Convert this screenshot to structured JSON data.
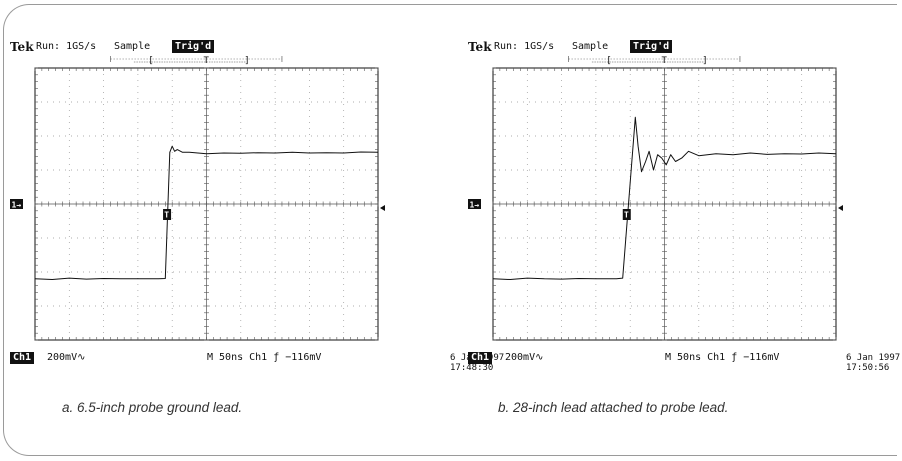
{
  "chart_data": [
    {
      "type": "line",
      "caption": "a. 6.5-inch probe ground lead.",
      "header": {
        "brand": "Tek",
        "run": "Run: 1GS/s",
        "mode": "Sample",
        "trig_status": "Trig'd",
        "trig_marker": "T"
      },
      "footer": {
        "channel": "Ch1",
        "volts_per_div": "200mV",
        "timebase": "M  50ns  Ch1  ƒ −116mV"
      },
      "date": "6 Jan 1997",
      "time": "17:48:30",
      "ground_marker": "1→",
      "trigger_marker": "T",
      "grid": {
        "x_divisions": 10,
        "y_divisions": 8
      },
      "xlim": [
        0,
        10
      ],
      "ylim": [
        -4,
        4
      ],
      "series": [
        {
          "values": [
            [
              0.0,
              -2.2
            ],
            [
              0.5,
              -2.22
            ],
            [
              1.0,
              -2.18
            ],
            [
              1.5,
              -2.21
            ],
            [
              2.0,
              -2.19
            ],
            [
              2.5,
              -2.2
            ],
            [
              3.0,
              -2.2
            ],
            [
              3.6,
              -2.2
            ],
            [
              3.8,
              -2.19
            ],
            [
              3.93,
              1.52
            ],
            [
              4.0,
              1.7
            ],
            [
              4.07,
              1.55
            ],
            [
              4.15,
              1.6
            ],
            [
              4.3,
              1.52
            ],
            [
              4.5,
              1.52
            ],
            [
              5.0,
              1.48
            ],
            [
              5.5,
              1.5
            ],
            [
              6.0,
              1.49
            ],
            [
              6.5,
              1.51
            ],
            [
              7.0,
              1.5
            ],
            [
              7.5,
              1.52
            ],
            [
              8.0,
              1.5
            ],
            [
              8.5,
              1.51
            ],
            [
              9.0,
              1.5
            ],
            [
              9.5,
              1.53
            ],
            [
              10.0,
              1.52
            ]
          ]
        }
      ]
    },
    {
      "type": "line",
      "caption": "b. 28-inch lead attached to probe lead.",
      "header": {
        "brand": "Tek",
        "run": "Run: 1GS/s",
        "mode": "Sample",
        "trig_status": "Trig'd",
        "trig_marker": "T"
      },
      "footer": {
        "channel": "Ch1",
        "volts_per_div": "200mV",
        "timebase": "M  50ns  Ch1  ƒ −116mV"
      },
      "date": "6 Jan 1997",
      "time": "17:50:56",
      "ground_marker": "1→",
      "trigger_marker": "T",
      "grid": {
        "x_divisions": 10,
        "y_divisions": 8
      },
      "xlim": [
        0,
        10
      ],
      "ylim": [
        -4,
        4
      ],
      "series": [
        {
          "values": [
            [
              0.0,
              -2.2
            ],
            [
              0.5,
              -2.22
            ],
            [
              1.0,
              -2.18
            ],
            [
              1.5,
              -2.2
            ],
            [
              2.0,
              -2.21
            ],
            [
              2.5,
              -2.19
            ],
            [
              3.0,
              -2.2
            ],
            [
              3.6,
              -2.2
            ],
            [
              3.78,
              -2.18
            ],
            [
              4.15,
              2.55
            ],
            [
              4.23,
              1.7
            ],
            [
              4.33,
              0.95
            ],
            [
              4.45,
              1.25
            ],
            [
              4.55,
              1.55
            ],
            [
              4.68,
              1.0
            ],
            [
              4.8,
              1.45
            ],
            [
              4.92,
              1.35
            ],
            [
              5.05,
              1.15
            ],
            [
              5.18,
              1.45
            ],
            [
              5.32,
              1.25
            ],
            [
              5.5,
              1.35
            ],
            [
              5.7,
              1.55
            ],
            [
              6.0,
              1.42
            ],
            [
              6.5,
              1.48
            ],
            [
              7.0,
              1.45
            ],
            [
              7.5,
              1.5
            ],
            [
              8.0,
              1.46
            ],
            [
              8.5,
              1.48
            ],
            [
              9.0,
              1.47
            ],
            [
              9.5,
              1.5
            ],
            [
              10.0,
              1.48
            ]
          ]
        }
      ]
    }
  ]
}
